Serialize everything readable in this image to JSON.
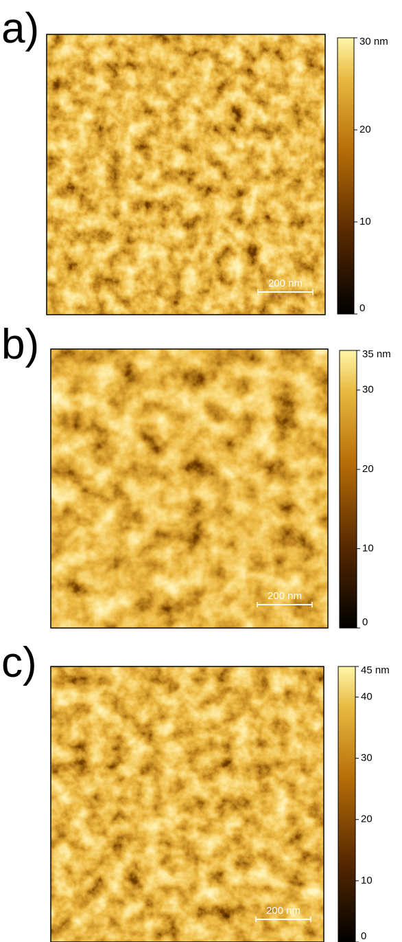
{
  "panels": [
    {
      "label": "a)",
      "scale_bar": "200 nm",
      "colorbar": {
        "range": [
          0,
          30
        ],
        "ticks": [
          {
            "value": 30,
            "label": "30 nm"
          },
          20,
          10,
          0
        ]
      }
    },
    {
      "label": "b)",
      "scale_bar": "200 nm",
      "colorbar": {
        "range": [
          0,
          35
        ],
        "ticks": [
          {
            "value": 35,
            "label": "35 nm"
          },
          30,
          20,
          10,
          0
        ]
      }
    },
    {
      "label": "c)",
      "scale_bar": "200 nm",
      "colorbar": {
        "range": [
          0,
          45
        ],
        "ticks": [
          {
            "value": 45,
            "label": "45 nm"
          },
          40,
          30,
          20,
          10,
          0
        ]
      }
    }
  ]
}
